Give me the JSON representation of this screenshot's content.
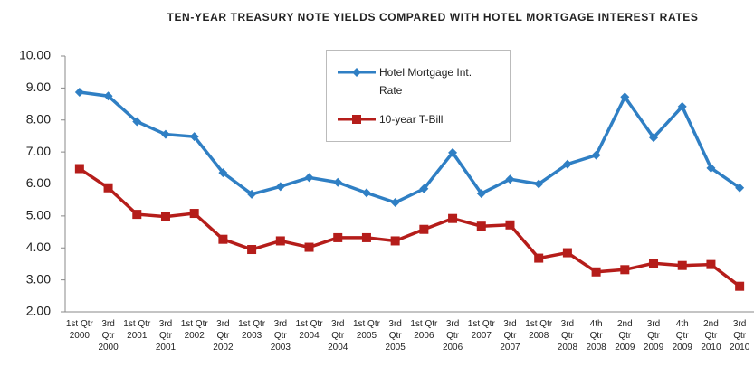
{
  "chart_data": {
    "type": "line",
    "title": "TEN-YEAR TREASURY NOTE YIELDS COMPARED WITH HOTEL MORTGAGE INTEREST RATES",
    "categories": [
      "1st Qtr 2000",
      "3rd Qtr 2000",
      "1st Qtr 2001",
      "3rd Qtr 2001",
      "1st Qtr 2002",
      "3rd Qtr 2002",
      "1st Qtr 2003",
      "3rd Qtr 2003",
      "1st Qtr 2004",
      "3rd Qtr 2004",
      "1st Qtr 2005",
      "3rd Qtr 2005",
      "1st Qtr 2006",
      "3rd Qtr 2006",
      "1st Qtr 2007",
      "3rd Qtr 2007",
      "1st Qtr 2008",
      "3rd Qtr 2008",
      "4th Qtr 2008",
      "2nd Qtr 2009",
      "3rd Qtr 2009",
      "4th Qtr 2009",
      "2nd Qtr 2010",
      "3rd Qtr 2010"
    ],
    "series": [
      {
        "name": "Hotel Mortgage Int. Rate",
        "color": "#2f7fc4",
        "marker": "diamond",
        "values": [
          8.87,
          8.75,
          7.95,
          7.55,
          7.48,
          6.35,
          5.68,
          5.92,
          6.2,
          6.05,
          5.72,
          5.42,
          5.85,
          6.98,
          5.7,
          6.15,
          6.0,
          6.62,
          6.9,
          8.72,
          7.45,
          8.42,
          6.5,
          5.88
        ]
      },
      {
        "name": "10-year T-Bill",
        "color": "#b51d1a",
        "marker": "square",
        "values": [
          6.48,
          5.88,
          5.05,
          4.98,
          5.08,
          4.27,
          3.95,
          4.22,
          4.02,
          4.32,
          4.32,
          4.22,
          4.58,
          4.92,
          4.68,
          4.72,
          3.68,
          3.85,
          3.25,
          3.32,
          3.52,
          3.45,
          3.48,
          2.8
        ]
      }
    ],
    "ylim": [
      2,
      10
    ],
    "yticks": [
      {
        "value": 2,
        "label": "2.00"
      },
      {
        "value": 3,
        "label": "3.00"
      },
      {
        "value": 4,
        "label": "4.00"
      },
      {
        "value": 5,
        "label": "5.00"
      },
      {
        "value": 6,
        "label": "6.00"
      },
      {
        "value": 7,
        "label": "7.00"
      },
      {
        "value": 8,
        "label": "8.00"
      },
      {
        "value": 9,
        "label": "9.00"
      },
      {
        "value": 10,
        "label": "10.00"
      }
    ],
    "grid": false
  }
}
